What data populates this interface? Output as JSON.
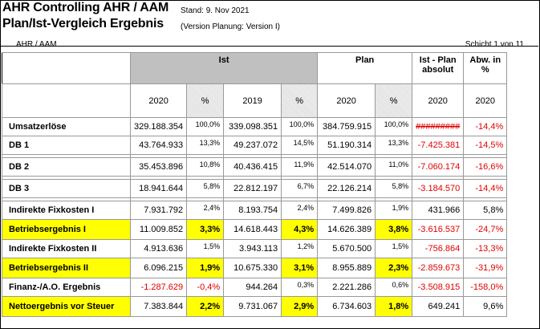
{
  "header": {
    "title1": "AHR Controlling AHR / AAM",
    "title2": "Plan/Ist-Vergleich Ergebnis",
    "stand": "Stand: 9. Nov 2021",
    "version": "(Version Planung: Version I)"
  },
  "subheader": {
    "left": "AHR / AAM",
    "right": "Schicht 1 von 11"
  },
  "columns": {
    "ist": "Ist",
    "plan": "Plan",
    "diff": "Ist - Plan absolut",
    "abw": "Abw. in %",
    "years": [
      "2020",
      "%",
      "2019",
      "%",
      "2020",
      "%",
      "2020",
      "2020"
    ]
  },
  "colors": {
    "highlight": "#ffff00",
    "negative": "#e00000",
    "ist_header": "#c0c0c0"
  },
  "rows": [
    {
      "label": "Umsatzerlöse",
      "v": [
        "329.188.354",
        "100,0%",
        "339.098.351",
        "100,0%",
        "384.759.915",
        "100,0%",
        "#########",
        "-14,4%"
      ],
      "hl": false,
      "neg": [
        6,
        7
      ],
      "sep": false
    },
    {
      "label": "DB 1",
      "v": [
        "43.764.933",
        "13,3%",
        "49.237.072",
        "14,5%",
        "51.190.314",
        "13,3%",
        "-7.425.381",
        "-14,5%"
      ],
      "hl": false,
      "neg": [
        6,
        7
      ],
      "sep": true
    },
    {
      "label": "DB 2",
      "v": [
        "35.453.896",
        "10,8%",
        "40.436.415",
        "11,9%",
        "42.514.070",
        "11,0%",
        "-7.060.174",
        "-16,6%"
      ],
      "hl": false,
      "neg": [
        6,
        7
      ],
      "sep": true
    },
    {
      "label": "DB 3",
      "v": [
        "18.941.644",
        "5,8%",
        "22.812.197",
        "6,7%",
        "22.126.214",
        "5,8%",
        "-3.184.570",
        "-14,4%"
      ],
      "hl": false,
      "neg": [
        6,
        7
      ],
      "sep": true
    },
    {
      "label": "Indirekte Fixkosten I",
      "v": [
        "7.931.792",
        "2,4%",
        "8.193.754",
        "2,4%",
        "7.499.826",
        "1,9%",
        "431.966",
        "5,8%"
      ],
      "hl": false,
      "neg": [],
      "sep": false
    },
    {
      "label": "Betriebsergebnis I",
      "v": [
        "11.009.852",
        "3,3%",
        "14.618.443",
        "4,3%",
        "14.626.389",
        "3,8%",
        "-3.616.537",
        "-24,7%"
      ],
      "hl": true,
      "neg": [
        6,
        7
      ],
      "sep": false
    },
    {
      "label": "Indirekte Fixkosten II",
      "v": [
        "4.913.636",
        "1,5%",
        "3.943.113",
        "1,2%",
        "5.670.500",
        "1,5%",
        "-756.864",
        "-13,3%"
      ],
      "hl": false,
      "neg": [
        6,
        7
      ],
      "sep": false
    },
    {
      "label": "Betriebsergebnis II",
      "v": [
        "6.096.215",
        "1,9%",
        "10.675.330",
        "3,1%",
        "8.955.889",
        "2,3%",
        "-2.859.673",
        "-31,9%"
      ],
      "hl": true,
      "neg": [
        6,
        7
      ],
      "sep": false
    },
    {
      "label": "Finanz-/A.O. Ergebnis",
      "v": [
        "-1.287.629",
        "-0,4%",
        "944.264",
        "0,3%",
        "2.221.286",
        "0,6%",
        "-3.508.915",
        "-158,0%"
      ],
      "hl": false,
      "neg": [
        0,
        1,
        6,
        7
      ],
      "sep": false
    },
    {
      "label": "Nettoergebnis vor Steuer",
      "v": [
        "7.383.844",
        "2,2%",
        "9.731.067",
        "2,9%",
        "6.734.603",
        "1,8%",
        "649.241",
        "9,6%"
      ],
      "hl": true,
      "neg": [],
      "sep": false
    }
  ]
}
